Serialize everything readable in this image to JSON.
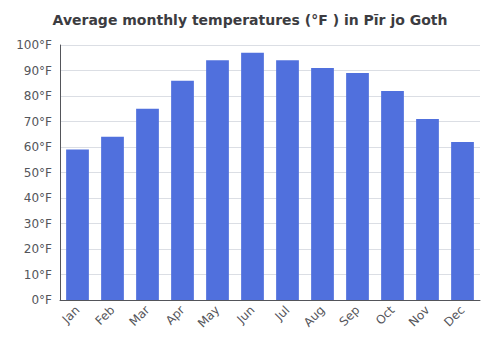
{
  "chart_data": {
    "type": "bar",
    "title": "Average monthly temperatures (°F ) in Pīr jo Goth",
    "categories": [
      "Jan",
      "Feb",
      "Mar",
      "Apr",
      "May",
      "Jun",
      "Jul",
      "Aug",
      "Sep",
      "Oct",
      "Nov",
      "Dec"
    ],
    "values": [
      59,
      64,
      75,
      86,
      94,
      97,
      94,
      91,
      89,
      82,
      71,
      62
    ],
    "ylim": [
      0,
      100
    ],
    "yticks": [
      {
        "value": 0,
        "label": "0°F"
      },
      {
        "value": 10,
        "label": "10°F"
      },
      {
        "value": 20,
        "label": "20°F"
      },
      {
        "value": 30,
        "label": "30°F"
      },
      {
        "value": 40,
        "label": "40°F"
      },
      {
        "value": 50,
        "label": "50°F"
      },
      {
        "value": 60,
        "label": "60°F"
      },
      {
        "value": 70,
        "label": "70°F"
      },
      {
        "value": 80,
        "label": "80°F"
      },
      {
        "value": 90,
        "label": "90°F"
      },
      {
        "value": 100,
        "label": "100°F"
      }
    ],
    "grid": true
  }
}
